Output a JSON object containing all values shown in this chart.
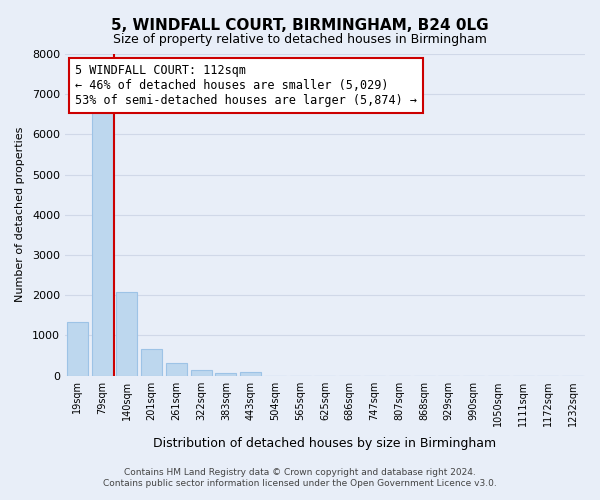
{
  "title": "5, WINDFALL COURT, BIRMINGHAM, B24 0LG",
  "subtitle": "Size of property relative to detached houses in Birmingham",
  "bar_values": [
    1320,
    6600,
    2070,
    650,
    300,
    130,
    70,
    100,
    0,
    0,
    0,
    0,
    0,
    0,
    0,
    0,
    0,
    0,
    0,
    0,
    0
  ],
  "bar_labels": [
    "19sqm",
    "79sqm",
    "140sqm",
    "201sqm",
    "261sqm",
    "322sqm",
    "383sqm",
    "443sqm",
    "504sqm",
    "565sqm",
    "625sqm",
    "686sqm",
    "747sqm",
    "807sqm",
    "868sqm",
    "929sqm",
    "990sqm",
    "1050sqm",
    "1111sqm",
    "1172sqm",
    "1232sqm"
  ],
  "bar_color": "#bdd7ee",
  "bar_edge_color": "#9dc3e6",
  "redline_x": 1.5,
  "ylim": [
    0,
    8000
  ],
  "yticks": [
    0,
    1000,
    2000,
    3000,
    4000,
    5000,
    6000,
    7000,
    8000
  ],
  "ylabel": "Number of detached properties",
  "xlabel": "Distribution of detached houses by size in Birmingham",
  "annotation_title": "5 WINDFALL COURT: 112sqm",
  "annotation_line1": "← 46% of detached houses are smaller (5,029)",
  "annotation_line2": "53% of semi-detached houses are larger (5,874) →",
  "annotation_box_color": "#ffffff",
  "annotation_box_edge_color": "#cc0000",
  "footer_line1": "Contains HM Land Registry data © Crown copyright and database right 2024.",
  "footer_line2": "Contains public sector information licensed under the Open Government Licence v3.0.",
  "grid_color": "#d0d8e8",
  "bg_color": "#e8eef8"
}
